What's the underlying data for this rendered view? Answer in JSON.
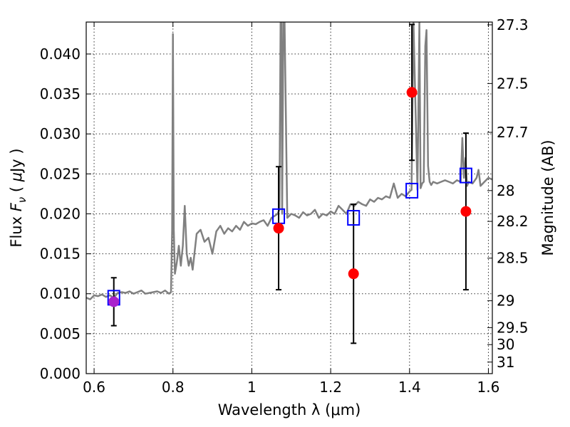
{
  "chart_data": {
    "type": "scatter",
    "xlabel": "Wavelength  λ (μm)",
    "ylabel": "Flux  F_ν  ( μJy )",
    "ylabel_parts": {
      "pre": "Flux ",
      "sym": "F",
      "sub": "ν",
      "post": "  ( ",
      "unit_sym": "μ",
      "unit": "Jy )"
    },
    "right_ylabel": "Magnitude (AB)",
    "xlim": [
      0.58,
      1.61
    ],
    "ylim": [
      0.0,
      0.044
    ],
    "grid": true,
    "x_ticks": [
      {
        "value": 0.6,
        "label": "0.6"
      },
      {
        "value": 0.8,
        "label": "0.8"
      },
      {
        "value": 1.0,
        "label": "1"
      },
      {
        "value": 1.2,
        "label": "1.2"
      },
      {
        "value": 1.4,
        "label": "1.4"
      },
      {
        "value": 1.6,
        "label": "1.6"
      }
    ],
    "y_ticks": [
      {
        "value": 0.0,
        "label": "0.000"
      },
      {
        "value": 0.005,
        "label": "0.005"
      },
      {
        "value": 0.01,
        "label": "0.010"
      },
      {
        "value": 0.015,
        "label": "0.015"
      },
      {
        "value": 0.02,
        "label": "0.020"
      },
      {
        "value": 0.025,
        "label": "0.025"
      },
      {
        "value": 0.03,
        "label": "0.030"
      },
      {
        "value": 0.035,
        "label": "0.035"
      },
      {
        "value": 0.04,
        "label": "0.040"
      }
    ],
    "right_ticks": [
      {
        "value": 27.3,
        "label": "27.3"
      },
      {
        "value": 27.5,
        "label": "27.5"
      },
      {
        "value": 27.7,
        "label": "27.7"
      },
      {
        "value": 28.0,
        "label": "28"
      },
      {
        "value": 28.2,
        "label": "28.2"
      },
      {
        "value": 28.5,
        "label": "28.5"
      },
      {
        "value": 29.0,
        "label": "29"
      },
      {
        "value": 29.5,
        "label": "29.5"
      },
      {
        "value": 30.0,
        "label": "30"
      },
      {
        "value": 31.0,
        "label": "31"
      }
    ],
    "spectrum": {
      "color": "#808080",
      "x": [
        0.58,
        0.59,
        0.6,
        0.61,
        0.62,
        0.63,
        0.64,
        0.65,
        0.66,
        0.67,
        0.68,
        0.69,
        0.7,
        0.71,
        0.72,
        0.73,
        0.74,
        0.75,
        0.76,
        0.77,
        0.78,
        0.79,
        0.795,
        0.798,
        0.8,
        0.802,
        0.805,
        0.81,
        0.815,
        0.82,
        0.825,
        0.83,
        0.835,
        0.84,
        0.845,
        0.85,
        0.86,
        0.87,
        0.88,
        0.89,
        0.9,
        0.91,
        0.92,
        0.93,
        0.94,
        0.95,
        0.96,
        0.97,
        0.98,
        0.99,
        1.0,
        1.01,
        1.02,
        1.03,
        1.04,
        1.05,
        1.06,
        1.065,
        1.07,
        1.073,
        1.075,
        1.077,
        1.08,
        1.083,
        1.09,
        1.1,
        1.11,
        1.12,
        1.13,
        1.14,
        1.15,
        1.16,
        1.17,
        1.18,
        1.19,
        1.2,
        1.21,
        1.22,
        1.23,
        1.24,
        1.25,
        1.26,
        1.27,
        1.28,
        1.29,
        1.3,
        1.31,
        1.32,
        1.33,
        1.34,
        1.35,
        1.36,
        1.37,
        1.38,
        1.39,
        1.4,
        1.405,
        1.41,
        1.42,
        1.425,
        1.428,
        1.432,
        1.436,
        1.44,
        1.443,
        1.447,
        1.451,
        1.455,
        1.46,
        1.47,
        1.48,
        1.49,
        1.5,
        1.51,
        1.52,
        1.53,
        1.534,
        1.538,
        1.542,
        1.546,
        1.55,
        1.56,
        1.57,
        1.575,
        1.58,
        1.59,
        1.6,
        1.61
      ],
      "y": [
        0.0095,
        0.0093,
        0.0098,
        0.0097,
        0.0099,
        0.0096,
        0.0098,
        0.0095,
        0.0101,
        0.0102,
        0.0101,
        0.0103,
        0.01,
        0.0102,
        0.0104,
        0.01,
        0.0101,
        0.0102,
        0.0103,
        0.0101,
        0.0104,
        0.01,
        0.0102,
        0.018,
        0.0425,
        0.018,
        0.0125,
        0.014,
        0.016,
        0.0135,
        0.016,
        0.021,
        0.015,
        0.0135,
        0.0145,
        0.013,
        0.0175,
        0.018,
        0.0165,
        0.017,
        0.015,
        0.0178,
        0.0185,
        0.0175,
        0.0182,
        0.0178,
        0.0185,
        0.018,
        0.019,
        0.0185,
        0.0188,
        0.0187,
        0.019,
        0.0192,
        0.0185,
        0.0195,
        0.0198,
        0.02,
        0.0205,
        0.044,
        0.044,
        0.02,
        0.044,
        0.044,
        0.0195,
        0.02,
        0.0198,
        0.0195,
        0.0202,
        0.0198,
        0.02,
        0.0205,
        0.0195,
        0.02,
        0.0198,
        0.0203,
        0.02,
        0.021,
        0.0205,
        0.02,
        0.0212,
        0.021,
        0.0215,
        0.0212,
        0.021,
        0.0218,
        0.0215,
        0.022,
        0.0218,
        0.0222,
        0.022,
        0.0238,
        0.022,
        0.0225,
        0.0222,
        0.0228,
        0.023,
        0.044,
        0.023,
        0.044,
        0.0232,
        0.0238,
        0.024,
        0.041,
        0.043,
        0.026,
        0.024,
        0.0236,
        0.024,
        0.0238,
        0.024,
        0.0242,
        0.024,
        0.0238,
        0.0242,
        0.024,
        0.0295,
        0.0245,
        0.027,
        0.0235,
        0.024,
        0.0238,
        0.0245,
        0.0255,
        0.0235,
        0.024,
        0.0245,
        0.0243
      ]
    },
    "observed": {
      "color": "#ff0000",
      "points": [
        {
          "x": 0.65,
          "y": 0.009,
          "err": 0.003
        },
        {
          "x": 1.068,
          "y": 0.0182,
          "err": 0.0077
        },
        {
          "x": 1.258,
          "y": 0.0125,
          "err": 0.0087
        },
        {
          "x": 1.406,
          "y": 0.0352,
          "err": 0.0085
        },
        {
          "x": 1.543,
          "y": 0.0203,
          "err": 0.0098
        }
      ]
    },
    "model": {
      "color": "#0000ff",
      "points": [
        {
          "x": 0.65,
          "y": 0.0095
        },
        {
          "x": 1.068,
          "y": 0.0197
        },
        {
          "x": 1.258,
          "y": 0.0195
        },
        {
          "x": 1.406,
          "y": 0.0229
        },
        {
          "x": 1.543,
          "y": 0.0248
        }
      ]
    },
    "overlap_color": "#aa22cc"
  }
}
